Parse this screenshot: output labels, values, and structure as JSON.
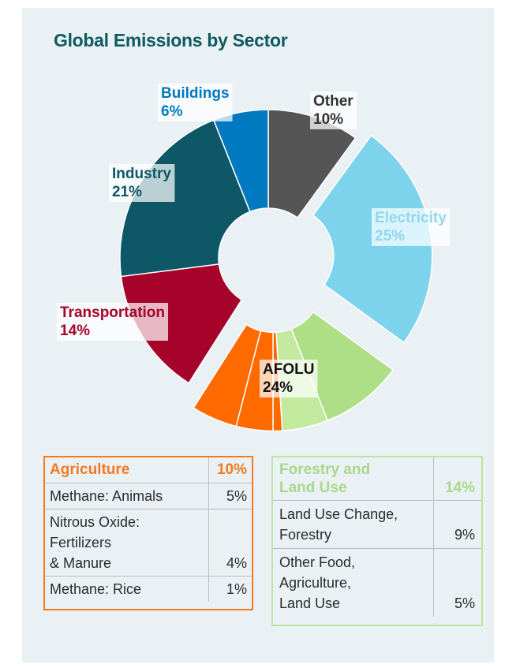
{
  "chart_data": {
    "type": "pie",
    "title": "Global Emissions by Sector",
    "slices": [
      {
        "label": "Other",
        "value": 10,
        "value_label": "10%",
        "color": "#555555"
      },
      {
        "label": "Electricity",
        "value": 25,
        "value_label": "25%",
        "color": "#7dd3ec"
      },
      {
        "label": "AFOLU",
        "value": 24,
        "value_label": "24%",
        "color": "#f47a20",
        "sub_slices": [
          {
            "label": "Land Use Change, Forestry",
            "value": 9,
            "color": "#aedf86"
          },
          {
            "label": "Other Food, Agriculture, Land Use",
            "value": 5,
            "color": "#c3e99f"
          },
          {
            "label": "Methane: Rice",
            "value": 1,
            "color": "#ff6a00"
          },
          {
            "label": "Nitrous Oxide: Fertilizers & Manure",
            "value": 4,
            "color": "#ff6a00"
          },
          {
            "label": "Methane: Animals",
            "value": 5,
            "color": "#ff6a00"
          }
        ]
      },
      {
        "label": "Transportation",
        "value": 14,
        "value_label": "14%",
        "color": "#a6032a"
      },
      {
        "label": "Industry",
        "value": 21,
        "value_label": "21%",
        "color": "#0e5766"
      },
      {
        "label": "Buildings",
        "value": 6,
        "value_label": "6%",
        "color": "#0079c1"
      }
    ]
  },
  "agriculture": {
    "header": "Agriculture",
    "total": "10%",
    "rows": [
      {
        "label": "Methane: Animals",
        "value": "5%"
      },
      {
        "label": "Nitrous Oxide:\nFertilizers\n& Manure",
        "value": "4%"
      },
      {
        "label": "Methane: Rice",
        "value": "1%"
      }
    ]
  },
  "forestry": {
    "header": "Forestry and\nLand Use",
    "total": "14%",
    "rows": [
      {
        "label": "Land Use Change,\nForestry",
        "value": "9%"
      },
      {
        "label": "Other Food,\nAgriculture,\nLand Use",
        "value": "5%"
      }
    ]
  },
  "colors": {
    "title": "#0f5961",
    "agriculture": "#f47a20",
    "forestry": "#a8d88a",
    "panel": "#eaf1f4"
  }
}
